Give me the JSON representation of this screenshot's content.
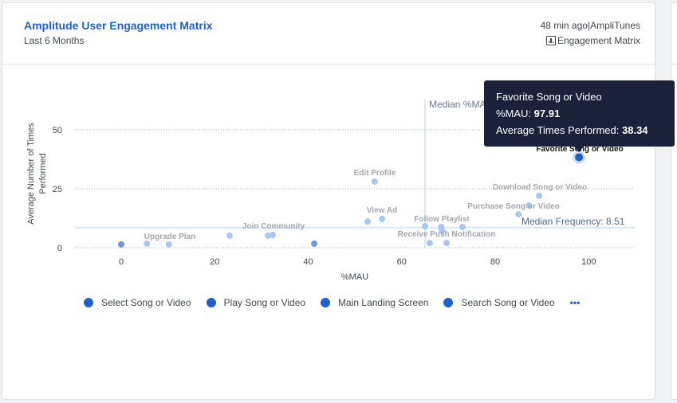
{
  "card": {
    "title": "Amplitude User Engagement Matrix",
    "subtitle": "Last 6 Months",
    "meta_time": "48 min ago",
    "meta_sep": "|",
    "meta_project": "AmpliTunes",
    "meta_chart_type_icon": "bar-chart-icon",
    "meta_chart_type": "Engagement Matrix"
  },
  "tooltip": {
    "title": "Favorite Song or Video",
    "x_label": "%MAU: ",
    "x_value": "97.91",
    "y_label": "Average Times Performed: ",
    "y_value": "38.34"
  },
  "legend": {
    "items": [
      {
        "label": "Select Song or Video",
        "color": "#1e61cd"
      },
      {
        "label": "Play Song or Video",
        "color": "#1e61cd"
      },
      {
        "label": "Main Landing Screen",
        "color": "#1e61cd"
      },
      {
        "label": "Search Song or Video",
        "color": "#1e61cd"
      }
    ],
    "more": "•••"
  },
  "chart_data": {
    "type": "scatter",
    "title": "Amplitude User Engagement Matrix",
    "subtitle": "Last 6 Months",
    "xlabel": "%MAU",
    "ylabel": "Average Number of Times Performed",
    "xlim": [
      -10,
      110
    ],
    "ylim": [
      -3,
      63
    ],
    "x_ticks": [
      0,
      20,
      40,
      60,
      80,
      100
    ],
    "y_ticks": [
      0,
      25,
      50
    ],
    "grid": {
      "x": false,
      "y": true,
      "style": "dotted"
    },
    "reference_lines": [
      {
        "axis": "x",
        "value": 65,
        "label": "Median %MAU"
      },
      {
        "axis": "y",
        "value": 8.51,
        "label": "Median Frequency: 8.51"
      }
    ],
    "legend_position": "bottom",
    "series": [
      {
        "name": "Events",
        "points": [
          {
            "x": 0,
            "y": 1.4,
            "label": "",
            "highlight": true
          },
          {
            "x": 5.5,
            "y": 1.7,
            "label": ""
          },
          {
            "x": 10.2,
            "y": 1.4,
            "label": "Upgrade Plan"
          },
          {
            "x": 23.2,
            "y": 5.1,
            "label": ""
          },
          {
            "x": 31.4,
            "y": 5.1,
            "label": ""
          },
          {
            "x": 32.4,
            "y": 5.4,
            "label": "Join Community"
          },
          {
            "x": 41.3,
            "y": 1.7,
            "label": "",
            "highlight": true
          },
          {
            "x": 52.7,
            "y": 11.1,
            "label": ""
          },
          {
            "x": 55.8,
            "y": 12.2,
            "label": "View Ad"
          },
          {
            "x": 54.2,
            "y": 28.0,
            "label": "Edit Profile"
          },
          {
            "x": 65.0,
            "y": 9.1,
            "label": ""
          },
          {
            "x": 68.4,
            "y": 8.8,
            "label": "Follow Playlist"
          },
          {
            "x": 68.6,
            "y": 7.1,
            "label": ""
          },
          {
            "x": 73.0,
            "y": 8.8,
            "label": ""
          },
          {
            "x": 66.0,
            "y": 2.0,
            "label": "Receive Push Notification"
          },
          {
            "x": 69.6,
            "y": 2.0,
            "label": ""
          },
          {
            "x": 85.0,
            "y": 14.2,
            "label": ""
          },
          {
            "x": 87.2,
            "y": 17.9,
            "label": "Purchase Song or Video"
          },
          {
            "x": 89.4,
            "y": 22.0,
            "label": "Download Song or Video"
          },
          {
            "x": 97.91,
            "y": 38.34,
            "label": "Favorite Song or Video",
            "highlight": true,
            "active": true
          }
        ]
      }
    ],
    "legend": [
      "Select Song or Video",
      "Play Song or Video",
      "Main Landing Screen",
      "Search Song or Video"
    ]
  }
}
